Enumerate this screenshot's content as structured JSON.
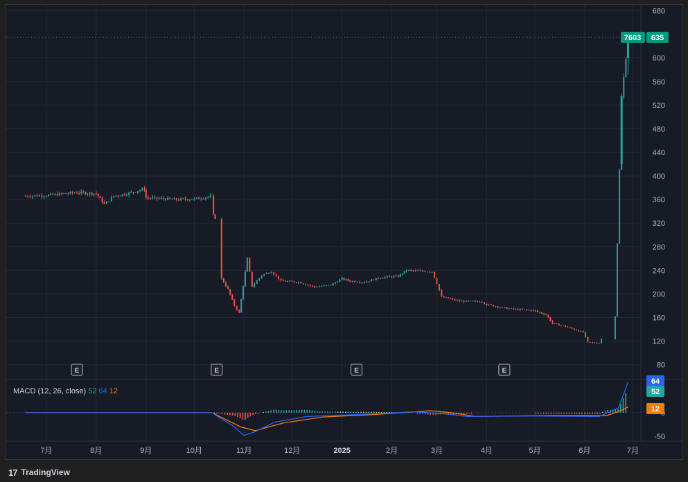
{
  "footer": {
    "brand": "TradingView",
    "logo_glyph": "17"
  },
  "colors": {
    "up": "#26a69a",
    "down": "#ef5350",
    "macd": "#2962ff",
    "signal": "#f57c00",
    "grid": "#232836",
    "text": "#b2b5be",
    "bg": "#161b25",
    "price_tag": "#089981"
  },
  "price_tags": {
    "last_value": "7603",
    "last_price": "635"
  },
  "macd_tags": {
    "macd": "64",
    "hist": "52",
    "signal": "12"
  },
  "macd_legend": {
    "name": "MACD (12, 26, close)",
    "v1": "52",
    "v2": "64",
    "v3": "12"
  },
  "earnings_marker": "E",
  "chart_data": {
    "type": "candlestick",
    "x_labels": [
      "7月",
      "8月",
      "9月",
      "10月",
      "11月",
      "12月",
      "2025",
      "2月",
      "3月",
      "4月",
      "5月",
      "6月",
      "7月"
    ],
    "y_ticks": [
      80,
      120,
      160,
      200,
      240,
      280,
      320,
      360,
      400,
      440,
      480,
      520,
      560,
      600,
      680
    ],
    "ylim": [
      55,
      690
    ],
    "macd_ticks": [
      -50,
      0
    ],
    "last_price": 635,
    "price_path": [
      [
        "2024-06-18",
        366
      ],
      [
        "2024-07-01",
        367
      ],
      [
        "2024-07-20",
        372
      ],
      [
        "2024-08-01",
        370
      ],
      [
        "2024-08-06",
        352
      ],
      [
        "2024-08-12",
        366
      ],
      [
        "2024-08-20",
        370
      ],
      [
        "2024-08-31",
        378
      ],
      [
        "2024-09-01",
        363
      ],
      [
        "2024-09-20",
        360
      ],
      [
        "2024-10-01",
        361
      ],
      [
        "2024-10-11",
        365
      ],
      [
        "2024-10-13",
        333
      ],
      [
        "2024-10-14",
        329
      ],
      [
        "2024-10-18",
        226
      ],
      [
        "2024-10-22",
        208
      ],
      [
        "2024-10-26",
        180
      ],
      [
        "2024-10-29",
        168
      ],
      [
        "2024-11-03",
        260
      ],
      [
        "2024-11-06",
        213
      ],
      [
        "2024-11-12",
        232
      ],
      [
        "2024-11-18",
        238
      ],
      [
        "2024-11-24",
        222
      ],
      [
        "2024-12-05",
        220
      ],
      [
        "2024-12-15",
        212
      ],
      [
        "2024-12-25",
        215
      ],
      [
        "2025-01-01",
        226
      ],
      [
        "2025-01-06",
        222
      ],
      [
        "2025-01-15",
        220
      ],
      [
        "2025-01-25",
        228
      ],
      [
        "2025-02-05",
        230
      ],
      [
        "2025-02-10",
        240
      ],
      [
        "2025-02-26",
        238
      ],
      [
        "2025-03-01",
        218
      ],
      [
        "2025-03-04",
        195
      ],
      [
        "2025-03-15",
        188
      ],
      [
        "2025-03-29",
        187
      ],
      [
        "2025-04-01",
        182
      ],
      [
        "2025-04-15",
        175
      ],
      [
        "2025-04-30",
        172
      ],
      [
        "2025-05-08",
        165
      ],
      [
        "2025-05-12",
        150
      ],
      [
        "2025-05-20",
        145
      ],
      [
        "2025-05-31",
        135
      ],
      [
        "2025-06-03",
        118
      ],
      [
        "2025-06-10",
        117
      ],
      [
        "2025-06-20",
        163
      ],
      [
        "2025-06-24",
        533
      ],
      [
        "2025-06-28",
        635
      ]
    ],
    "earnings_dates": [
      "2024-07-20",
      "2024-10-15",
      "2025-01-10",
      "2025-04-12"
    ],
    "macd": {
      "name": "MACD (12, 26, close)",
      "ylim": [
        -60,
        70
      ],
      "macd_path": [
        [
          "2024-06-18",
          0
        ],
        [
          "2024-10-12",
          0
        ],
        [
          "2024-10-26",
          -30
        ],
        [
          "2024-11-01",
          -48
        ],
        [
          "2024-11-08",
          -40
        ],
        [
          "2024-11-20",
          -20
        ],
        [
          "2024-12-10",
          -8
        ],
        [
          "2025-01-10",
          -4
        ],
        [
          "2025-02-15",
          2
        ],
        [
          "2025-03-05",
          -2
        ],
        [
          "2025-03-20",
          -8
        ],
        [
          "2025-05-01",
          -7
        ],
        [
          "2025-06-10",
          -8
        ],
        [
          "2025-06-22",
          10
        ],
        [
          "2025-06-28",
          64
        ]
      ],
      "signal_path": [
        [
          "2024-06-18",
          0
        ],
        [
          "2024-10-12",
          0
        ],
        [
          "2024-10-30",
          -30
        ],
        [
          "2024-11-08",
          -38
        ],
        [
          "2024-11-25",
          -22
        ],
        [
          "2024-12-20",
          -9
        ],
        [
          "2025-01-20",
          -4
        ],
        [
          "2025-02-25",
          4
        ],
        [
          "2025-03-10",
          0
        ],
        [
          "2025-03-25",
          -8
        ],
        [
          "2025-05-10",
          -6
        ],
        [
          "2025-06-15",
          -6
        ],
        [
          "2025-06-24",
          5
        ],
        [
          "2025-06-28",
          12
        ]
      ]
    }
  }
}
